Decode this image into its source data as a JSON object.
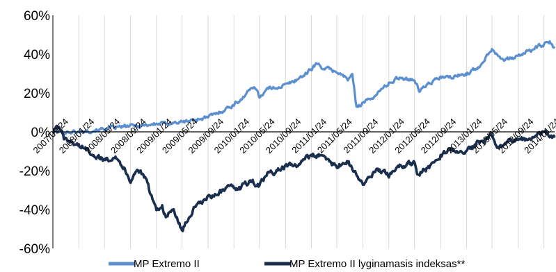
{
  "chart_data": {
    "type": "line",
    "title": "",
    "xlabel": "",
    "ylabel": "",
    "ylim": [
      -60,
      60
    ],
    "y_ticks": [
      "60%",
      "40%",
      "20%",
      "0%",
      "-20%",
      "-40%",
      "-60%"
    ],
    "y_tick_values": [
      60,
      40,
      20,
      0,
      -20,
      -40,
      -60
    ],
    "x_ticks": [
      "2007/09/24",
      "2008/01/24",
      "2008/05/24",
      "2008/09/24",
      "2009/01/24",
      "2009/05/24",
      "2009/09/24",
      "2010/01/24",
      "2010/05/24",
      "2010/09/24",
      "2011/01/24",
      "2011/05/24",
      "2011/09/24",
      "2012/01/24",
      "2012/05/24",
      "2012/09/24",
      "2013/01/24",
      "2013/05/24",
      "2013/09/24",
      "2014/01/24"
    ],
    "x_range": [
      "2007/09/24",
      "2014/03/15"
    ],
    "grid": "vertical",
    "legend_position": "bottom",
    "series": [
      {
        "name": "MP Extremo II",
        "color": "#5b8fd0",
        "x": [
          "2007/09/24",
          "2007/11/01",
          "2008/01/24",
          "2008/05/24",
          "2008/09/24",
          "2009/01/24",
          "2009/05/24",
          "2009/09/24",
          "2009/11/15",
          "2010/01/24",
          "2010/03/01",
          "2010/05/01",
          "2010/05/24",
          "2010/07/01",
          "2010/09/24",
          "2010/11/01",
          "2011/01/01",
          "2011/02/15",
          "2011/03/20",
          "2011/05/24",
          "2011/07/15",
          "2011/08/05",
          "2011/08/25",
          "2011/09/24",
          "2011/11/01",
          "2012/01/24",
          "2012/03/15",
          "2012/05/24",
          "2012/06/15",
          "2012/08/01",
          "2012/09/24",
          "2012/11/15",
          "2013/01/24",
          "2013/03/20",
          "2013/05/24",
          "2013/06/25",
          "2013/08/01",
          "2013/09/24",
          "2013/11/20",
          "2014/01/24",
          "2014/02/20",
          "2014/03/15"
        ],
        "values": [
          0,
          0,
          0,
          1.5,
          3,
          4,
          5,
          7.5,
          10,
          14,
          17,
          24,
          18,
          22,
          24,
          26,
          30,
          35,
          33,
          31,
          27,
          29,
          13,
          15,
          17,
          25,
          28,
          27,
          21,
          25,
          28,
          28,
          30,
          33,
          43,
          39,
          37,
          39,
          42,
          45,
          46,
          43
        ]
      },
      {
        "name": "MP Extremo II lyginamasis indeksas**",
        "color": "#1a2e4e",
        "x": [
          "2007/09/24",
          "2007/10/20",
          "2007/11/15",
          "2008/01/24",
          "2008/03/15",
          "2008/05/24",
          "2008/07/15",
          "2008/08/20",
          "2008/09/24",
          "2008/10/25",
          "2008/12/01",
          "2009/01/24",
          "2009/02/20",
          "2009/03/09",
          "2009/04/15",
          "2009/05/24",
          "2009/07/15",
          "2009/09/24",
          "2009/11/20",
          "2010/01/24",
          "2010/02/10",
          "2010/04/15",
          "2010/05/24",
          "2010/07/01",
          "2010/09/24",
          "2010/11/15",
          "2011/01/24",
          "2011/03/15",
          "2011/05/24",
          "2011/07/15",
          "2011/08/10",
          "2011/09/24",
          "2011/10/15",
          "2011/11/25",
          "2012/01/24",
          "2012/03/15",
          "2012/05/24",
          "2012/06/05",
          "2012/08/01",
          "2012/09/24",
          "2012/11/15",
          "2013/01/24",
          "2013/03/15",
          "2013/05/24",
          "2013/06/25",
          "2013/08/01",
          "2013/09/24",
          "2013/11/20",
          "2014/01/24",
          "2014/02/20",
          "2014/03/15"
        ],
        "values": [
          0,
          3,
          -4,
          -7,
          -10,
          -15,
          -12,
          -18,
          -25,
          -19,
          -24,
          -40,
          -38,
          -44,
          -40,
          -51,
          -40,
          -34,
          -31,
          -28,
          -30,
          -25,
          -28,
          -22,
          -18,
          -17,
          -12,
          -12,
          -18,
          -15,
          -20,
          -27,
          -25,
          -20,
          -22,
          -18,
          -16,
          -22,
          -18,
          -12,
          -9,
          -10,
          -6,
          -2,
          -9,
          -5,
          -3,
          -4,
          0,
          -2,
          -3
        ]
      }
    ]
  }
}
